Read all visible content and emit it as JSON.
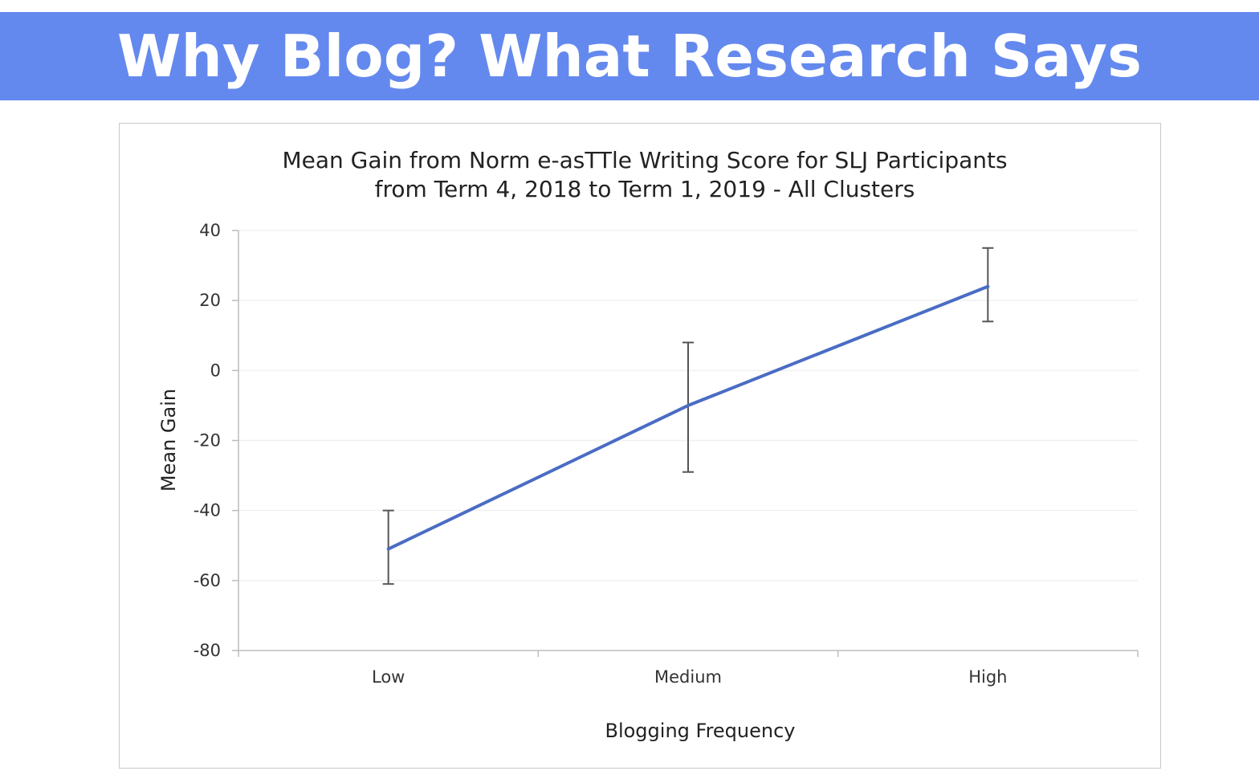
{
  "header": {
    "title": "Why Blog? What Research Says",
    "background": "#6489ee"
  },
  "chart_data": {
    "type": "line",
    "title_lines": [
      "Mean Gain from Norm e-asTTle Writing Score for SLJ Participants",
      "from Term 4, 2018 to Term 1, 2019 - All Clusters"
    ],
    "xlabel": "Blogging Frequency",
    "ylabel": "Mean Gain",
    "categories": [
      "Low",
      "Medium",
      "High"
    ],
    "ylim": [
      -80,
      40
    ],
    "yticks": [
      40,
      20,
      0,
      -20,
      -40,
      -60,
      -80
    ],
    "grid": true,
    "legend": "none",
    "line_color": "#4a6cc4",
    "series": [
      {
        "values": [
          -51,
          -10,
          24
        ],
        "error_low": [
          -61,
          -29,
          14
        ],
        "error_high": [
          -40,
          8,
          35
        ]
      }
    ]
  }
}
